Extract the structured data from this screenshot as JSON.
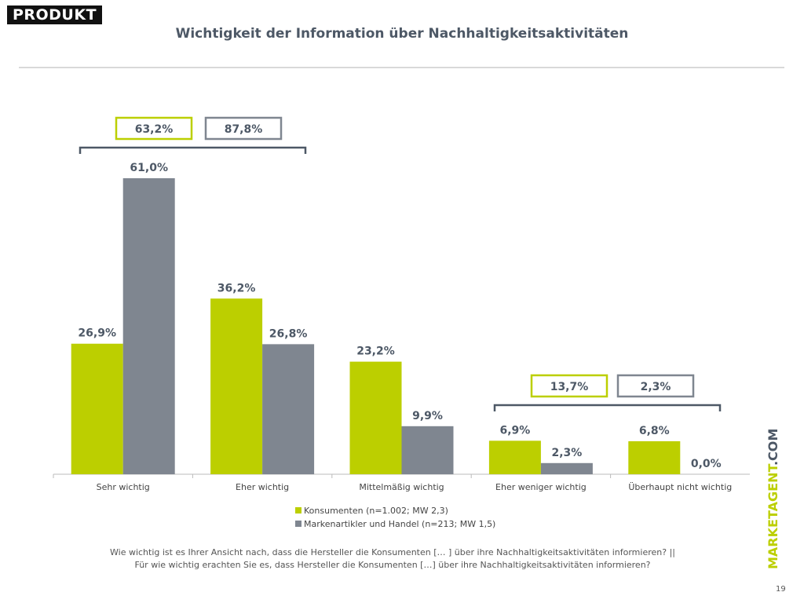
{
  "logo": "PRODUKT",
  "title": "Wichtigkeit der Information über Nachhaltigkeitsaktivitäten",
  "chart_data": {
    "type": "bar",
    "categories": [
      "Sehr wichtig",
      "Eher wichtig",
      "Mittelmäßig wichtig",
      "Eher weniger wichtig",
      "Überhaupt nicht wichtig"
    ],
    "series": [
      {
        "name": "Konsumenten (n=1.002; MW 2,3)",
        "color": "#bccf00",
        "values": [
          26.9,
          36.2,
          23.2,
          6.9,
          6.8
        ],
        "labels": [
          "26,9%",
          "36,2%",
          "23,2%",
          "6,9%",
          "6,8%"
        ]
      },
      {
        "name": "Markenartikler und Handel (n=213; MW 1,5)",
        "color": "#7f8690",
        "values": [
          61.0,
          26.8,
          9.9,
          2.3,
          0.0
        ],
        "labels": [
          "61,0%",
          "26,8%",
          "9,9%",
          "2,3%",
          "0,0%"
        ]
      }
    ],
    "summaries": [
      {
        "categories": [
          "Sehr wichtig",
          "Eher wichtig"
        ],
        "values": [
          "63,2%",
          "87,8%"
        ]
      },
      {
        "categories": [
          "Eher weniger wichtig",
          "Überhaupt nicht wichtig"
        ],
        "values": [
          "13,7%",
          "2,3%"
        ]
      }
    ],
    "legend_position": "bottom",
    "grid": false
  },
  "question_line1": "Wie wichtig ist es Ihrer Ansicht nach, dass die Hersteller die Konsumenten [… ] über ihre Nachhaltigkeitsaktivitäten informieren? ||",
  "question_line2": "Für wie wichtig erachten Sie es, dass Hersteller die Konsumenten […] über ihre Nachhaltigkeitsaktivitäten informieren?",
  "brand_main": "MARKETAGENT",
  "brand_suffix": ".COM",
  "page_number": "19"
}
